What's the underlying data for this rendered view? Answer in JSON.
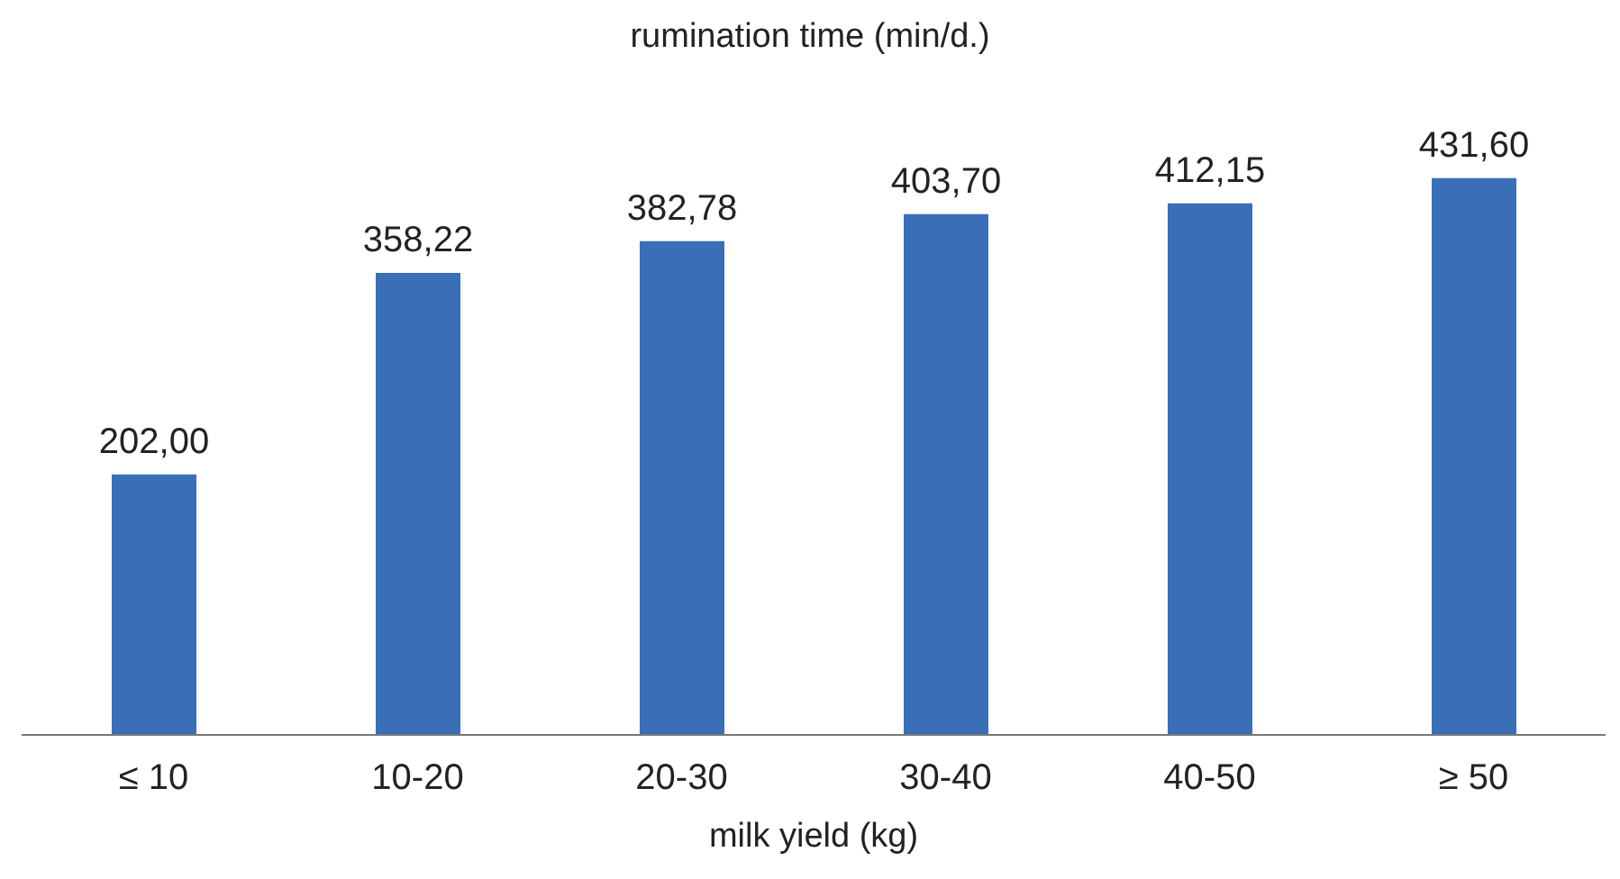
{
  "chart_data": {
    "type": "bar",
    "title": "rumination time (min/d.)",
    "xlabel": "milk yield (kg)",
    "categories": [
      "≤ 10",
      "10-20",
      "20-30",
      "30-40",
      "40-50",
      "≥ 50"
    ],
    "values": [
      202.0,
      358.22,
      382.78,
      403.7,
      412.15,
      431.6
    ],
    "value_labels": [
      "202,00",
      "358,22",
      "382,78",
      "403,70",
      "412,15",
      "431,60"
    ],
    "color": "#3a6fb7",
    "grid": false,
    "legend": false
  }
}
